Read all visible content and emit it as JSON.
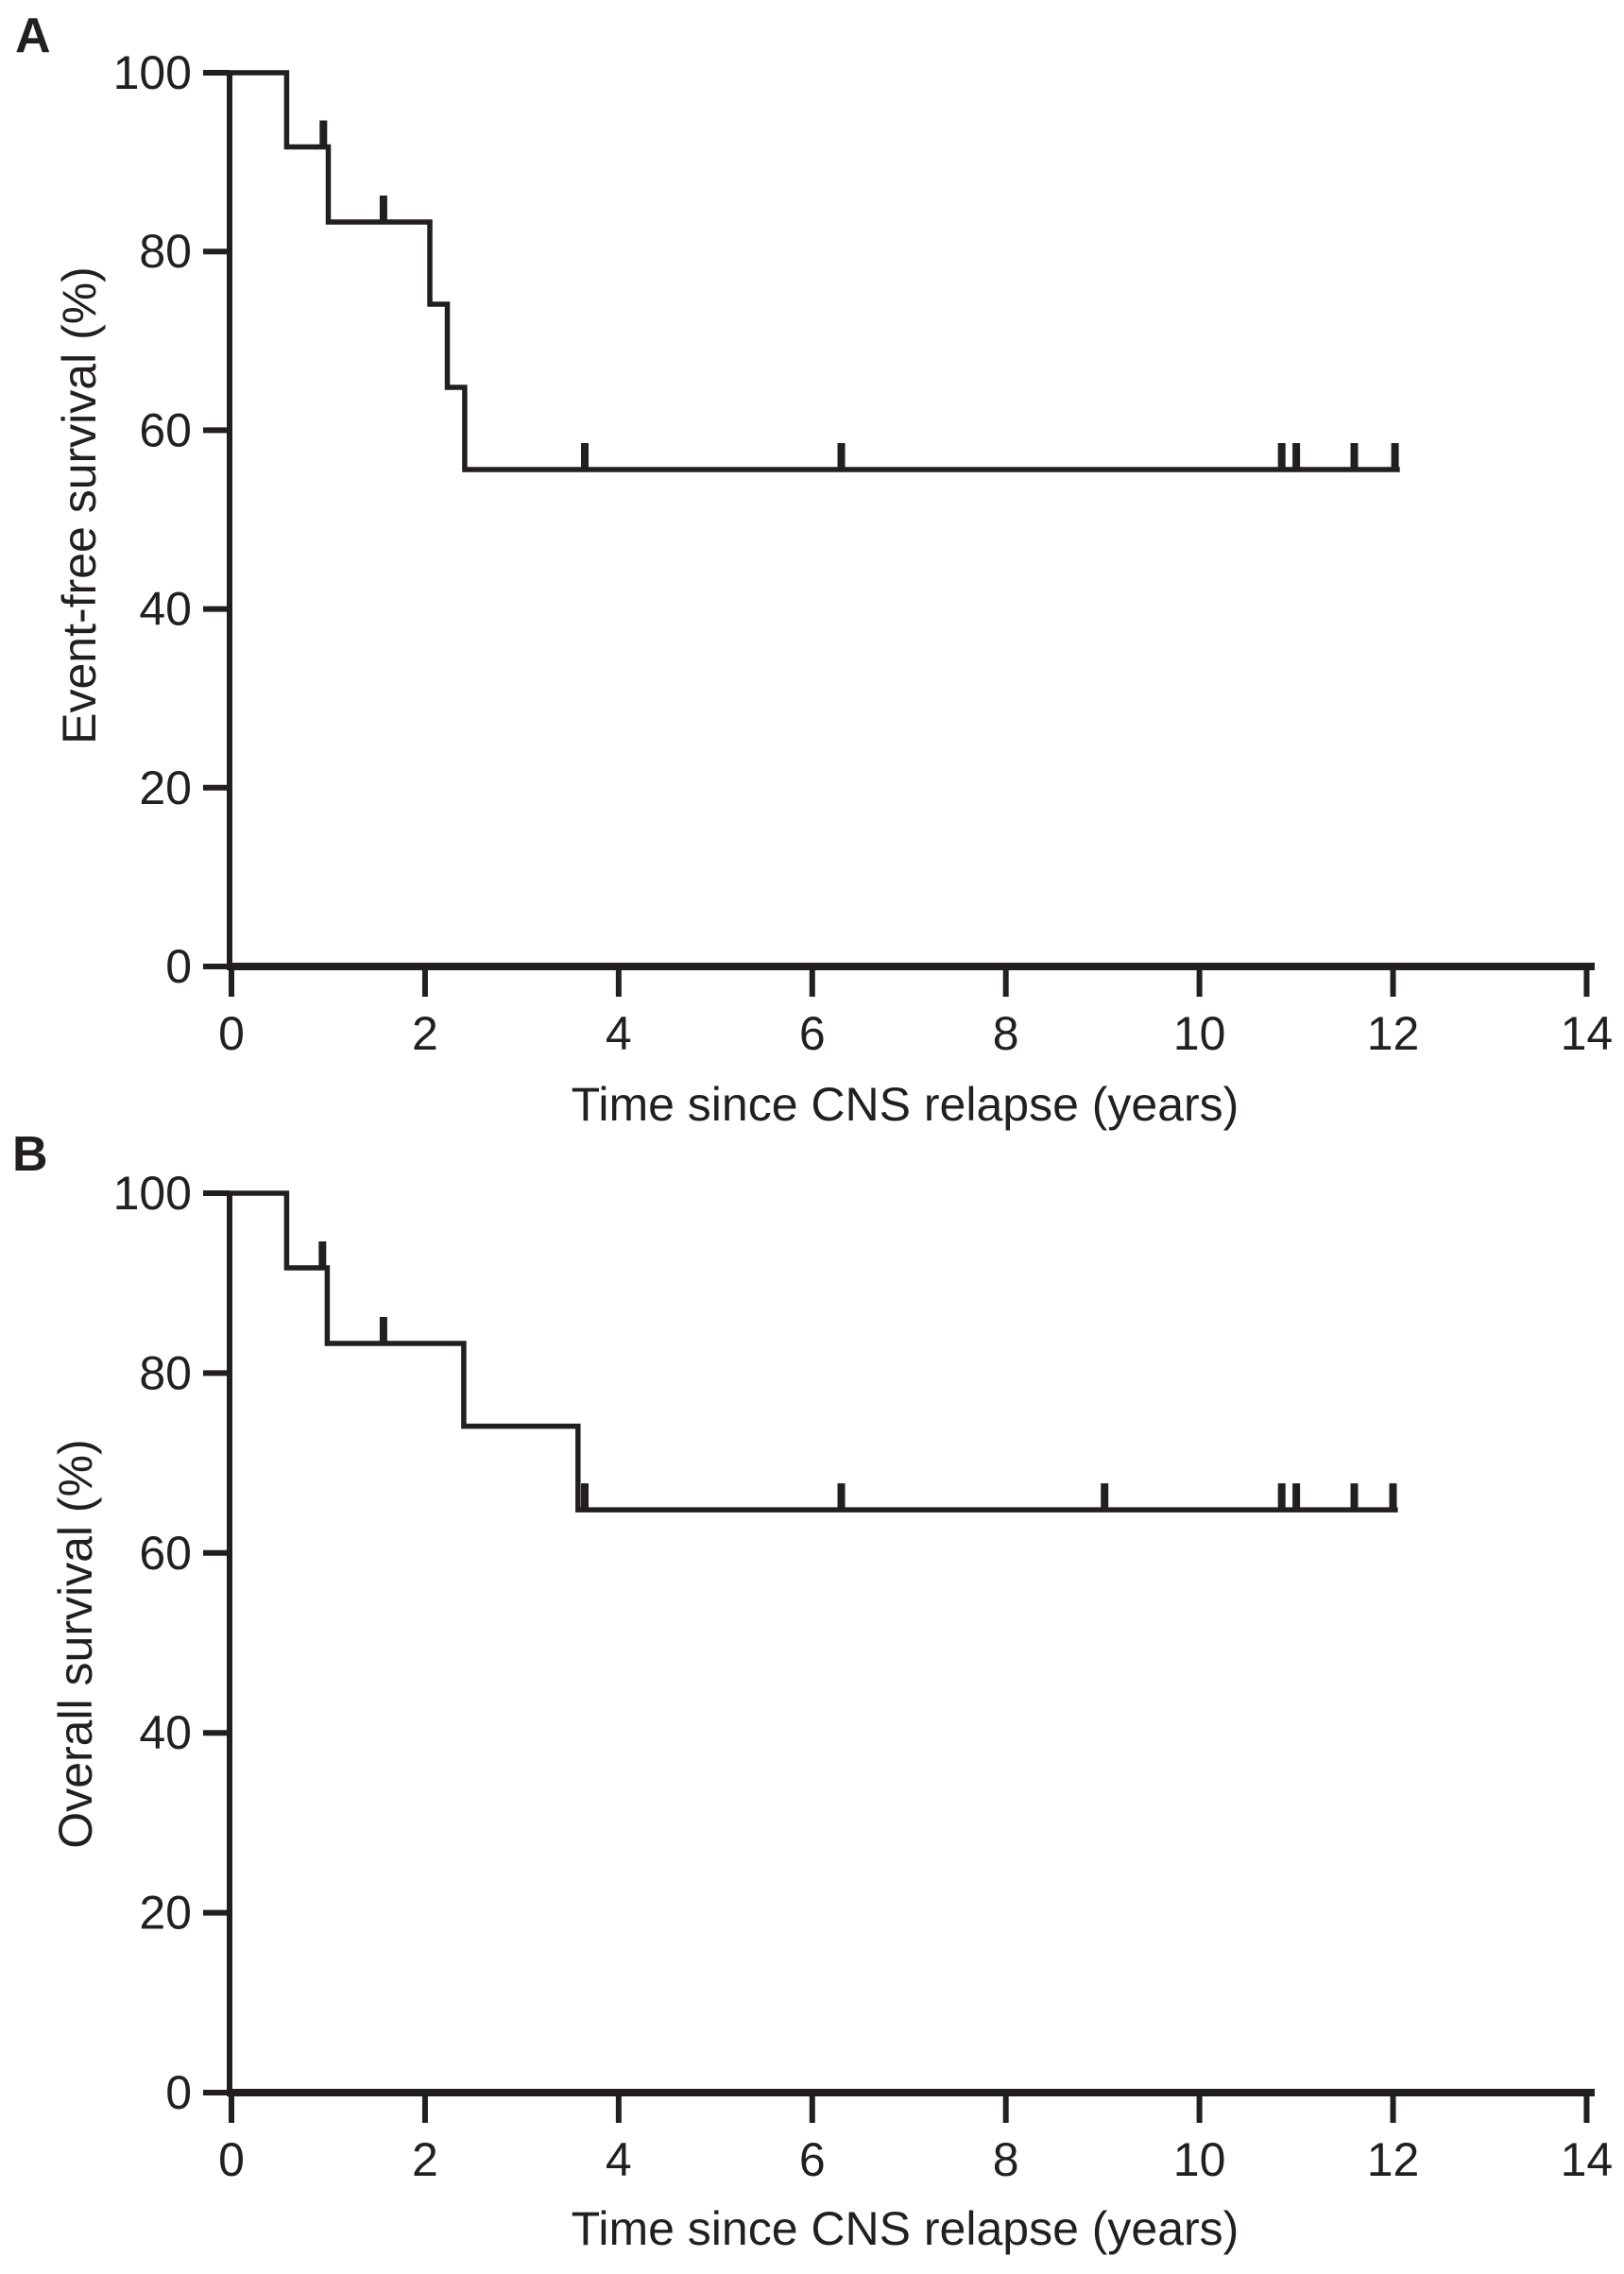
{
  "colors": {
    "ink": "#231f20",
    "background": "#ffffff"
  },
  "chart_data": [
    {
      "type": "line",
      "variant": "kaplan_meier_step",
      "panel_letter": "A",
      "ylabel": "Event-free survival (%)",
      "xlabel": "Time since CNS relapse (years)",
      "xlim": [
        0,
        14
      ],
      "ylim": [
        0,
        100
      ],
      "x_ticks": [
        0,
        2,
        4,
        6,
        8,
        10,
        12,
        14
      ],
      "y_ticks": [
        0,
        20,
        40,
        60,
        80,
        100
      ],
      "grid": false,
      "legend": "none",
      "series": [
        {
          "name": "Event-free survival",
          "steps_time_pct": [
            [
              0,
              100
            ],
            [
              0.57,
              91.7
            ],
            [
              1.0,
              83.3
            ],
            [
              2.05,
              74.1
            ],
            [
              2.23,
              64.8
            ],
            [
              2.41,
              55.6
            ]
          ],
          "curve_end_time": 12.07,
          "censor_marks_time_pct": [
            [
              0.95,
              91.7
            ],
            [
              1.57,
              83.3
            ],
            [
              3.65,
              55.6
            ],
            [
              6.3,
              55.6
            ],
            [
              10.85,
              55.6
            ],
            [
              11.0,
              55.6
            ],
            [
              11.6,
              55.6
            ],
            [
              12.02,
              55.6
            ]
          ]
        }
      ]
    },
    {
      "type": "line",
      "variant": "kaplan_meier_step",
      "panel_letter": "B",
      "ylabel": "Overall survival (%)",
      "xlabel": "Time since CNS relapse (years)",
      "xlim": [
        0,
        14
      ],
      "ylim": [
        0,
        100
      ],
      "x_ticks": [
        0,
        2,
        4,
        6,
        8,
        10,
        12,
        14
      ],
      "y_ticks": [
        0,
        20,
        40,
        60,
        80,
        100
      ],
      "grid": false,
      "legend": "none",
      "series": [
        {
          "name": "Overall survival",
          "steps_time_pct": [
            [
              0,
              100
            ],
            [
              0.57,
              91.7
            ],
            [
              0.99,
              83.3
            ],
            [
              2.4,
              74.1
            ],
            [
              3.58,
              64.8
            ]
          ],
          "curve_end_time": 12.05,
          "censor_marks_time_pct": [
            [
              0.94,
              91.7
            ],
            [
              1.57,
              83.3
            ],
            [
              3.65,
              64.8
            ],
            [
              6.3,
              64.8
            ],
            [
              9.02,
              64.8
            ],
            [
              10.85,
              64.8
            ],
            [
              11.0,
              64.8
            ],
            [
              11.6,
              64.8
            ],
            [
              12.0,
              64.8
            ]
          ]
        }
      ]
    }
  ]
}
